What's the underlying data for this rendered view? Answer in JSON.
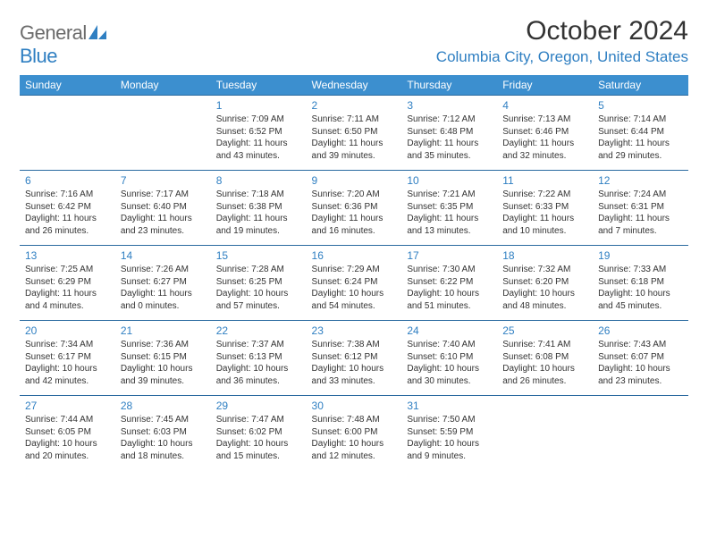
{
  "logo": {
    "text_gray": "General",
    "text_blue": "Blue"
  },
  "title": "October 2024",
  "location": "Columbia City, Oregon, United States",
  "colors": {
    "header_bg": "#3c8fcf",
    "header_text": "#ffffff",
    "accent": "#2f7fc2",
    "row_border": "#2a6aa0",
    "body_text": "#333333",
    "background": "#ffffff",
    "logo_gray": "#6b6b6b"
  },
  "day_headers": [
    "Sunday",
    "Monday",
    "Tuesday",
    "Wednesday",
    "Thursday",
    "Friday",
    "Saturday"
  ],
  "weeks": [
    [
      null,
      null,
      {
        "n": "1",
        "sr": "Sunrise: 7:09 AM",
        "ss": "Sunset: 6:52 PM",
        "d1": "Daylight: 11 hours",
        "d2": "and 43 minutes."
      },
      {
        "n": "2",
        "sr": "Sunrise: 7:11 AM",
        "ss": "Sunset: 6:50 PM",
        "d1": "Daylight: 11 hours",
        "d2": "and 39 minutes."
      },
      {
        "n": "3",
        "sr": "Sunrise: 7:12 AM",
        "ss": "Sunset: 6:48 PM",
        "d1": "Daylight: 11 hours",
        "d2": "and 35 minutes."
      },
      {
        "n": "4",
        "sr": "Sunrise: 7:13 AM",
        "ss": "Sunset: 6:46 PM",
        "d1": "Daylight: 11 hours",
        "d2": "and 32 minutes."
      },
      {
        "n": "5",
        "sr": "Sunrise: 7:14 AM",
        "ss": "Sunset: 6:44 PM",
        "d1": "Daylight: 11 hours",
        "d2": "and 29 minutes."
      }
    ],
    [
      {
        "n": "6",
        "sr": "Sunrise: 7:16 AM",
        "ss": "Sunset: 6:42 PM",
        "d1": "Daylight: 11 hours",
        "d2": "and 26 minutes."
      },
      {
        "n": "7",
        "sr": "Sunrise: 7:17 AM",
        "ss": "Sunset: 6:40 PM",
        "d1": "Daylight: 11 hours",
        "d2": "and 23 minutes."
      },
      {
        "n": "8",
        "sr": "Sunrise: 7:18 AM",
        "ss": "Sunset: 6:38 PM",
        "d1": "Daylight: 11 hours",
        "d2": "and 19 minutes."
      },
      {
        "n": "9",
        "sr": "Sunrise: 7:20 AM",
        "ss": "Sunset: 6:36 PM",
        "d1": "Daylight: 11 hours",
        "d2": "and 16 minutes."
      },
      {
        "n": "10",
        "sr": "Sunrise: 7:21 AM",
        "ss": "Sunset: 6:35 PM",
        "d1": "Daylight: 11 hours",
        "d2": "and 13 minutes."
      },
      {
        "n": "11",
        "sr": "Sunrise: 7:22 AM",
        "ss": "Sunset: 6:33 PM",
        "d1": "Daylight: 11 hours",
        "d2": "and 10 minutes."
      },
      {
        "n": "12",
        "sr": "Sunrise: 7:24 AM",
        "ss": "Sunset: 6:31 PM",
        "d1": "Daylight: 11 hours",
        "d2": "and 7 minutes."
      }
    ],
    [
      {
        "n": "13",
        "sr": "Sunrise: 7:25 AM",
        "ss": "Sunset: 6:29 PM",
        "d1": "Daylight: 11 hours",
        "d2": "and 4 minutes."
      },
      {
        "n": "14",
        "sr": "Sunrise: 7:26 AM",
        "ss": "Sunset: 6:27 PM",
        "d1": "Daylight: 11 hours",
        "d2": "and 0 minutes."
      },
      {
        "n": "15",
        "sr": "Sunrise: 7:28 AM",
        "ss": "Sunset: 6:25 PM",
        "d1": "Daylight: 10 hours",
        "d2": "and 57 minutes."
      },
      {
        "n": "16",
        "sr": "Sunrise: 7:29 AM",
        "ss": "Sunset: 6:24 PM",
        "d1": "Daylight: 10 hours",
        "d2": "and 54 minutes."
      },
      {
        "n": "17",
        "sr": "Sunrise: 7:30 AM",
        "ss": "Sunset: 6:22 PM",
        "d1": "Daylight: 10 hours",
        "d2": "and 51 minutes."
      },
      {
        "n": "18",
        "sr": "Sunrise: 7:32 AM",
        "ss": "Sunset: 6:20 PM",
        "d1": "Daylight: 10 hours",
        "d2": "and 48 minutes."
      },
      {
        "n": "19",
        "sr": "Sunrise: 7:33 AM",
        "ss": "Sunset: 6:18 PM",
        "d1": "Daylight: 10 hours",
        "d2": "and 45 minutes."
      }
    ],
    [
      {
        "n": "20",
        "sr": "Sunrise: 7:34 AM",
        "ss": "Sunset: 6:17 PM",
        "d1": "Daylight: 10 hours",
        "d2": "and 42 minutes."
      },
      {
        "n": "21",
        "sr": "Sunrise: 7:36 AM",
        "ss": "Sunset: 6:15 PM",
        "d1": "Daylight: 10 hours",
        "d2": "and 39 minutes."
      },
      {
        "n": "22",
        "sr": "Sunrise: 7:37 AM",
        "ss": "Sunset: 6:13 PM",
        "d1": "Daylight: 10 hours",
        "d2": "and 36 minutes."
      },
      {
        "n": "23",
        "sr": "Sunrise: 7:38 AM",
        "ss": "Sunset: 6:12 PM",
        "d1": "Daylight: 10 hours",
        "d2": "and 33 minutes."
      },
      {
        "n": "24",
        "sr": "Sunrise: 7:40 AM",
        "ss": "Sunset: 6:10 PM",
        "d1": "Daylight: 10 hours",
        "d2": "and 30 minutes."
      },
      {
        "n": "25",
        "sr": "Sunrise: 7:41 AM",
        "ss": "Sunset: 6:08 PM",
        "d1": "Daylight: 10 hours",
        "d2": "and 26 minutes."
      },
      {
        "n": "26",
        "sr": "Sunrise: 7:43 AM",
        "ss": "Sunset: 6:07 PM",
        "d1": "Daylight: 10 hours",
        "d2": "and 23 minutes."
      }
    ],
    [
      {
        "n": "27",
        "sr": "Sunrise: 7:44 AM",
        "ss": "Sunset: 6:05 PM",
        "d1": "Daylight: 10 hours",
        "d2": "and 20 minutes."
      },
      {
        "n": "28",
        "sr": "Sunrise: 7:45 AM",
        "ss": "Sunset: 6:03 PM",
        "d1": "Daylight: 10 hours",
        "d2": "and 18 minutes."
      },
      {
        "n": "29",
        "sr": "Sunrise: 7:47 AM",
        "ss": "Sunset: 6:02 PM",
        "d1": "Daylight: 10 hours",
        "d2": "and 15 minutes."
      },
      {
        "n": "30",
        "sr": "Sunrise: 7:48 AM",
        "ss": "Sunset: 6:00 PM",
        "d1": "Daylight: 10 hours",
        "d2": "and 12 minutes."
      },
      {
        "n": "31",
        "sr": "Sunrise: 7:50 AM",
        "ss": "Sunset: 5:59 PM",
        "d1": "Daylight: 10 hours",
        "d2": "and 9 minutes."
      },
      null,
      null
    ]
  ]
}
